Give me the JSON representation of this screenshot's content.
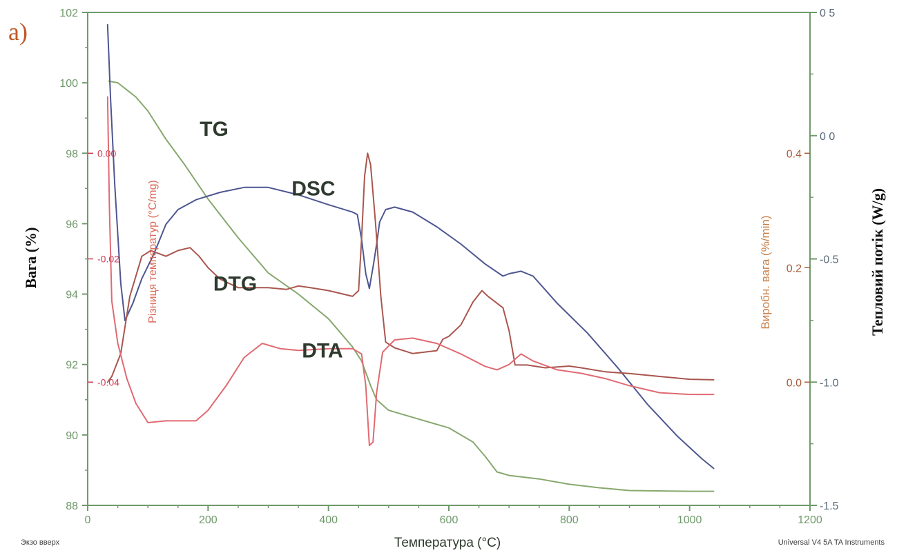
{
  "panel_label": "a)",
  "footer": {
    "left": "Экзо вверх",
    "right": "Universal V4 5A TA Instruments"
  },
  "colors": {
    "axes": "#6f9a6a",
    "tg": "#87a86d",
    "dsc": "#4d5690",
    "dtg": "#a9564e",
    "dta": "#e06a72",
    "left_inner_axis_text": "#d03a55",
    "right_inner_axis_text": "#a85c3a",
    "right_outer_axis_text": "#5a6a7a",
    "curve_label": "#2f3a2f",
    "panel_label": "#c05a2a",
    "label_text": "#111111"
  },
  "chart_data": {
    "type": "line",
    "title": "",
    "xlabel": "Температура (°C)",
    "xlim": [
      0,
      1200
    ],
    "xticks": [
      0,
      200,
      400,
      600,
      800,
      1000,
      1200
    ],
    "axes": {
      "left_outer": {
        "label": "Вага (%)",
        "lim": [
          88,
          102
        ],
        "ticks": [
          88,
          90,
          92,
          94,
          96,
          98,
          100,
          102
        ]
      },
      "left_inner": {
        "label": "Різниця температур (°C/mg)",
        "ticks": [
          {
            "value": 0.0,
            "text": "0.00",
            "y_left": 98
          },
          {
            "value": -0.02,
            "text": "-0.02",
            "y_left": 95
          },
          {
            "value": -0.04,
            "text": "-0.04",
            "y_left": 91.5
          }
        ]
      },
      "right_inner": {
        "label": "Виробн. вага (%/min)",
        "lim": [
          0.0,
          0.4
        ],
        "ticks": [
          {
            "value": 0.4,
            "text": "0.4"
          },
          {
            "value": 0.2,
            "text": "0.2"
          },
          {
            "value": 0.0,
            "text": "0.0"
          }
        ]
      },
      "right_outer": {
        "label": "Тепловий потік (W/g)",
        "lim": [
          -1.5,
          0.5
        ],
        "ticks": [
          {
            "value": 0.5,
            "text": "0 5"
          },
          {
            "value": 0.0,
            "text": "0 0"
          },
          {
            "value": -0.5,
            "text": "-0.5"
          },
          {
            "value": -1.0,
            "text": "-1.0"
          },
          {
            "value": -1.5,
            "text": "-1.5"
          }
        ]
      }
    },
    "series": [
      {
        "name": "TG",
        "axis": "left_outer",
        "points": [
          [
            35,
            100.05
          ],
          [
            50,
            100.0
          ],
          [
            80,
            99.6
          ],
          [
            100,
            99.2
          ],
          [
            130,
            98.4
          ],
          [
            160,
            97.7
          ],
          [
            200,
            96.7
          ],
          [
            250,
            95.6
          ],
          [
            300,
            94.6
          ],
          [
            350,
            94.0
          ],
          [
            400,
            93.3
          ],
          [
            420,
            92.9
          ],
          [
            440,
            92.5
          ],
          [
            455,
            92.1
          ],
          [
            470,
            91.4
          ],
          [
            480,
            91.0
          ],
          [
            500,
            90.7
          ],
          [
            550,
            90.45
          ],
          [
            600,
            90.2
          ],
          [
            640,
            89.8
          ],
          [
            660,
            89.4
          ],
          [
            680,
            88.95
          ],
          [
            700,
            88.85
          ],
          [
            750,
            88.75
          ],
          [
            800,
            88.6
          ],
          [
            850,
            88.5
          ],
          [
            900,
            88.42
          ],
          [
            1000,
            88.4
          ],
          [
            1040,
            88.4
          ]
        ]
      },
      {
        "name": "DSC",
        "axis": "right_outer",
        "points": [
          [
            33,
            0.45
          ],
          [
            38,
            0.15
          ],
          [
            45,
            -0.2
          ],
          [
            55,
            -0.6
          ],
          [
            62,
            -0.75
          ],
          [
            75,
            -0.68
          ],
          [
            90,
            -0.58
          ],
          [
            110,
            -0.48
          ],
          [
            130,
            -0.36
          ],
          [
            150,
            -0.3
          ],
          [
            180,
            -0.26
          ],
          [
            220,
            -0.23
          ],
          [
            260,
            -0.21
          ],
          [
            300,
            -0.21
          ],
          [
            350,
            -0.24
          ],
          [
            400,
            -0.28
          ],
          [
            440,
            -0.31
          ],
          [
            448,
            -0.32
          ],
          [
            455,
            -0.42
          ],
          [
            462,
            -0.56
          ],
          [
            468,
            -0.62
          ],
          [
            475,
            -0.52
          ],
          [
            480,
            -0.44
          ],
          [
            485,
            -0.35
          ],
          [
            495,
            -0.3
          ],
          [
            510,
            -0.29
          ],
          [
            540,
            -0.31
          ],
          [
            580,
            -0.37
          ],
          [
            620,
            -0.44
          ],
          [
            660,
            -0.52
          ],
          [
            690,
            -0.57
          ],
          [
            700,
            -0.56
          ],
          [
            720,
            -0.55
          ],
          [
            740,
            -0.57
          ],
          [
            780,
            -0.68
          ],
          [
            830,
            -0.8
          ],
          [
            880,
            -0.94
          ],
          [
            930,
            -1.09
          ],
          [
            980,
            -1.22
          ],
          [
            1020,
            -1.31
          ],
          [
            1040,
            -1.35
          ]
        ]
      },
      {
        "name": "DTG",
        "axis": "right_inner",
        "points": [
          [
            33,
            0.0
          ],
          [
            40,
            0.01
          ],
          [
            55,
            0.05
          ],
          [
            70,
            0.15
          ],
          [
            90,
            0.22
          ],
          [
            105,
            0.23
          ],
          [
            130,
            0.22
          ],
          [
            150,
            0.23
          ],
          [
            170,
            0.235
          ],
          [
            185,
            0.22
          ],
          [
            200,
            0.2
          ],
          [
            220,
            0.18
          ],
          [
            250,
            0.165
          ],
          [
            280,
            0.165
          ],
          [
            300,
            0.165
          ],
          [
            330,
            0.162
          ],
          [
            350,
            0.168
          ],
          [
            370,
            0.165
          ],
          [
            400,
            0.16
          ],
          [
            420,
            0.155
          ],
          [
            440,
            0.15
          ],
          [
            450,
            0.16
          ],
          [
            455,
            0.25
          ],
          [
            460,
            0.36
          ],
          [
            465,
            0.4
          ],
          [
            470,
            0.38
          ],
          [
            478,
            0.28
          ],
          [
            487,
            0.15
          ],
          [
            495,
            0.07
          ],
          [
            510,
            0.06
          ],
          [
            540,
            0.05
          ],
          [
            580,
            0.055
          ],
          [
            590,
            0.075
          ],
          [
            600,
            0.08
          ],
          [
            620,
            0.1
          ],
          [
            640,
            0.14
          ],
          [
            655,
            0.16
          ],
          [
            665,
            0.15
          ],
          [
            690,
            0.13
          ],
          [
            700,
            0.09
          ],
          [
            710,
            0.03
          ],
          [
            730,
            0.03
          ],
          [
            760,
            0.025
          ],
          [
            800,
            0.028
          ],
          [
            820,
            0.025
          ],
          [
            860,
            0.018
          ],
          [
            900,
            0.015
          ],
          [
            950,
            0.01
          ],
          [
            1000,
            0.005
          ],
          [
            1040,
            0.004
          ]
        ]
      },
      {
        "name": "DTA",
        "axis": "left_outer",
        "points": [
          [
            33,
            99.6
          ],
          [
            36,
            96.5
          ],
          [
            40,
            93.8
          ],
          [
            50,
            92.6
          ],
          [
            65,
            91.6
          ],
          [
            80,
            90.9
          ],
          [
            100,
            90.35
          ],
          [
            130,
            90.4
          ],
          [
            160,
            90.4
          ],
          [
            180,
            90.4
          ],
          [
            200,
            90.7
          ],
          [
            230,
            91.4
          ],
          [
            260,
            92.2
          ],
          [
            290,
            92.6
          ],
          [
            320,
            92.45
          ],
          [
            350,
            92.4
          ],
          [
            400,
            92.45
          ],
          [
            440,
            92.45
          ],
          [
            455,
            92.3
          ],
          [
            462,
            91.4
          ],
          [
            468,
            89.7
          ],
          [
            474,
            89.8
          ],
          [
            480,
            91.2
          ],
          [
            490,
            92.35
          ],
          [
            510,
            92.7
          ],
          [
            540,
            92.75
          ],
          [
            580,
            92.6
          ],
          [
            620,
            92.3
          ],
          [
            660,
            91.95
          ],
          [
            680,
            91.85
          ],
          [
            700,
            92.0
          ],
          [
            720,
            92.3
          ],
          [
            740,
            92.1
          ],
          [
            780,
            91.85
          ],
          [
            820,
            91.75
          ],
          [
            860,
            91.6
          ],
          [
            900,
            91.4
          ],
          [
            950,
            91.2
          ],
          [
            1000,
            91.15
          ],
          [
            1040,
            91.15
          ]
        ]
      }
    ],
    "annotations": [
      {
        "text": "TG",
        "x": 210,
        "y_left": 98.5
      },
      {
        "text": "DSC",
        "x": 375,
        "y_left": 96.8
      },
      {
        "text": "DTG",
        "x": 245,
        "y_left": 94.1
      },
      {
        "text": "DTA",
        "x": 390,
        "y_left": 92.2
      }
    ],
    "grid": false,
    "legend": "none"
  }
}
